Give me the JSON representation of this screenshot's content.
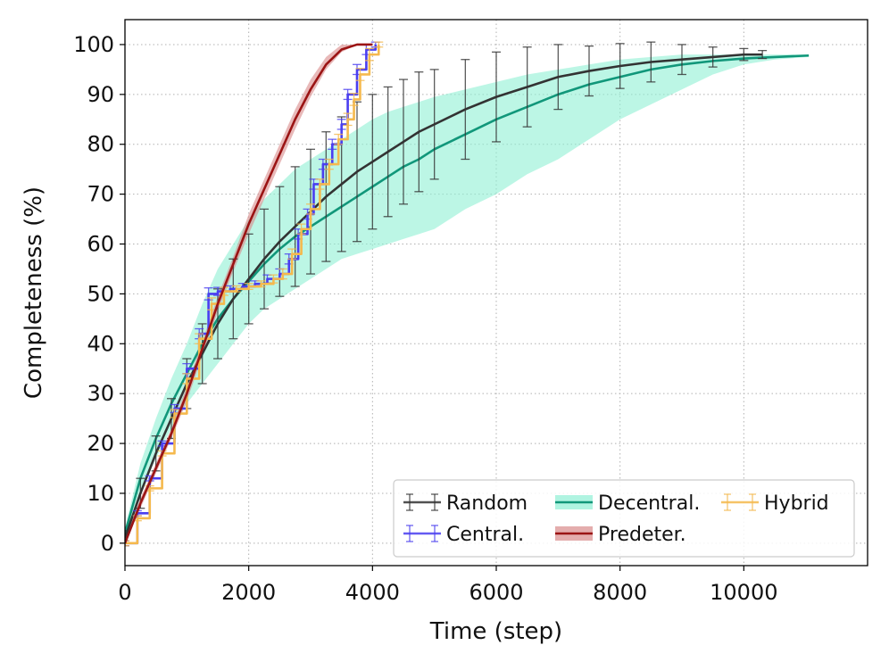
{
  "chart_data": {
    "type": "line",
    "title": "",
    "xlabel": "Time (step)",
    "ylabel": "Completeness (%)",
    "xlim": [
      0,
      12000
    ],
    "ylim": [
      -4.5,
      105
    ],
    "xticks": [
      0,
      2000,
      4000,
      6000,
      8000,
      10000
    ],
    "xtick_labels": [
      "0",
      "2000",
      "4000",
      "6000",
      "8000",
      "10000"
    ],
    "yticks": [
      0,
      10,
      20,
      30,
      40,
      50,
      60,
      70,
      80,
      90,
      100
    ],
    "ytick_labels": [
      "0",
      "10",
      "20",
      "30",
      "40",
      "50",
      "60",
      "70",
      "80",
      "90",
      "100"
    ],
    "grid": true,
    "legend_position": "lower-right",
    "series": [
      {
        "name": "Random",
        "color": "#333333",
        "style": "line-errorbars",
        "x": [
          0,
          250,
          500,
          750,
          1000,
          1250,
          1500,
          1750,
          2000,
          2250,
          2500,
          2750,
          3000,
          3250,
          3500,
          3750,
          4000,
          4250,
          4500,
          4750,
          5000,
          5500,
          6000,
          6500,
          7000,
          7500,
          8000,
          8500,
          9000,
          9500,
          10000,
          10300
        ],
        "y": [
          1,
          10,
          18,
          25,
          32,
          38,
          44,
          49,
          53,
          57,
          60.5,
          63.5,
          66.5,
          69.5,
          72,
          74.5,
          76.5,
          78.5,
          80.5,
          82.5,
          84,
          87,
          89.5,
          91.5,
          93.5,
          94.7,
          95.7,
          96.5,
          97,
          97.5,
          98,
          98
        ],
        "err": [
          1.5,
          3,
          3.5,
          4,
          5,
          6,
          7,
          8,
          9,
          10,
          11,
          12,
          12.5,
          13,
          13.5,
          14,
          13.5,
          13,
          12.5,
          12,
          11,
          10,
          9,
          8,
          6.5,
          5,
          4.5,
          4,
          3,
          2,
          1.2,
          0.8
        ]
      },
      {
        "name": "Central.",
        "color": "#4a3ef0",
        "style": "step-errorbars",
        "x": [
          0,
          200,
          400,
          600,
          800,
          1000,
          1200,
          1350,
          1500,
          1700,
          1900,
          2100,
          2300,
          2500,
          2650,
          2800,
          2950,
          3050,
          3200,
          3350,
          3500,
          3600,
          3750,
          3900,
          4050
        ],
        "y": [
          0,
          6,
          13,
          20,
          27,
          35,
          42,
          50,
          50.5,
          51,
          51.5,
          52,
          53,
          54,
          57,
          62,
          66,
          72,
          76,
          80,
          84,
          90,
          95,
          99,
          100
        ],
        "err": [
          0.5,
          0.5,
          0.5,
          0.5,
          0.8,
          1,
          1,
          1.2,
          0.8,
          0.6,
          0.6,
          0.6,
          0.8,
          1,
          1,
          1,
          1,
          1,
          1,
          1,
          1,
          1,
          1,
          1,
          0.5
        ]
      },
      {
        "name": "Decentral.",
        "color": "#11977a",
        "band_color": "#8ff0d4",
        "style": "line-band",
        "x": [
          0,
          250,
          500,
          750,
          1000,
          1250,
          1500,
          1750,
          2000,
          2250,
          2500,
          2750,
          3000,
          3250,
          3500,
          3750,
          4000,
          4250,
          4500,
          4750,
          5000,
          5500,
          6000,
          6500,
          7000,
          7500,
          8000,
          8500,
          9000,
          9500,
          10000,
          10500,
          11050
        ],
        "y": [
          2,
          13,
          21,
          28,
          34,
          40,
          45,
          49,
          52.5,
          56,
          59,
          61.5,
          63.5,
          65.5,
          67.5,
          69.5,
          71.5,
          73.5,
          75.5,
          77,
          79,
          82,
          85,
          87.5,
          90,
          92,
          93.5,
          95,
          96,
          96.7,
          97.2,
          97.5,
          97.8
        ],
        "lower": [
          1,
          10,
          17,
          23,
          28,
          32,
          36,
          40,
          44,
          47,
          49,
          51,
          53,
          55,
          57,
          58,
          59,
          60,
          61,
          62,
          63,
          67,
          70,
          74,
          77,
          81,
          85,
          88,
          91,
          94,
          96,
          97,
          97.5
        ],
        "upper": [
          3,
          16,
          25,
          33,
          40,
          48,
          55,
          60,
          65,
          69,
          72,
          75,
          77,
          79,
          81,
          83,
          85,
          86.5,
          87.5,
          88.5,
          89.5,
          91,
          92.5,
          94,
          95,
          96,
          97,
          97.5,
          98,
          98,
          98,
          98,
          98
        ]
      },
      {
        "name": "Predeter.",
        "color": "#9b1414",
        "band_color": "#d98a8a",
        "style": "line-band",
        "x": [
          0,
          250,
          500,
          750,
          1000,
          1250,
          1500,
          1750,
          2000,
          2250,
          2500,
          2750,
          3000,
          3250,
          3500,
          3750,
          4000
        ],
        "y": [
          0,
          8,
          15,
          22,
          30,
          39,
          48,
          56,
          64,
          71,
          78,
          85,
          91,
          96,
          99,
          100,
          100
        ],
        "lower": [
          0,
          7,
          14,
          21,
          28.5,
          37.5,
          46.5,
          54.5,
          62,
          69,
          76,
          83,
          89.5,
          95,
          98.5,
          100,
          100
        ],
        "upper": [
          0.5,
          9,
          16,
          23,
          31.5,
          40.5,
          49.5,
          57.5,
          66,
          73,
          80,
          87,
          93,
          97.5,
          100,
          100,
          100
        ]
      },
      {
        "name": "Hybrid",
        "color": "#f5b94d",
        "style": "step-errorbars",
        "x": [
          0,
          200,
          400,
          600,
          800,
          1000,
          1200,
          1400,
          1600,
          1800,
          2000,
          2200,
          2400,
          2550,
          2700,
          2850,
          3000,
          3150,
          3300,
          3450,
          3600,
          3700,
          3800,
          3950,
          4100
        ],
        "y": [
          0,
          5,
          11,
          18,
          26,
          33,
          41,
          48,
          50.5,
          51,
          51.5,
          52,
          53,
          54,
          58,
          63,
          67,
          72,
          76,
          81,
          85,
          89,
          94,
          98,
          100
        ],
        "err": [
          0.5,
          0.5,
          0.5,
          0.5,
          0.8,
          1,
          1,
          1.2,
          0.8,
          0.6,
          0.6,
          0.6,
          0.8,
          1,
          1,
          1,
          1,
          1,
          1,
          1,
          1.2,
          1.2,
          1.2,
          1.2,
          0.5
        ]
      }
    ]
  }
}
